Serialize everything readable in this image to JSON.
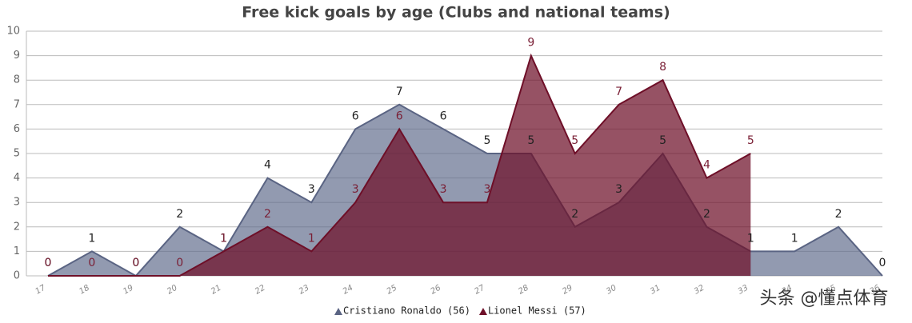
{
  "chart_data": {
    "type": "area",
    "title": "Free kick goals by age (Clubs and national teams)",
    "categories": [
      "17",
      "18",
      "19",
      "20",
      "21",
      "22",
      "23",
      "24",
      "25",
      "26",
      "27",
      "28",
      "29",
      "30",
      "31",
      "32",
      "33",
      "34",
      "35",
      "36"
    ],
    "series": [
      {
        "name": "Cristiano Ronaldo (56)",
        "color": "#5a6483",
        "label_color": "#222222",
        "values": [
          0,
          1,
          0,
          2,
          1,
          4,
          3,
          6,
          7,
          6,
          5,
          5,
          2,
          3,
          5,
          2,
          1,
          1,
          2,
          0
        ]
      },
      {
        "name": "Lionel Messi (57)",
        "color": "#6e0f28",
        "label_color": "#7a1f35",
        "values": [
          0,
          0,
          0,
          0,
          1,
          2,
          1,
          3,
          6,
          3,
          3,
          9,
          5,
          7,
          8,
          4,
          5,
          null,
          null,
          null
        ]
      }
    ],
    "ylim": [
      0,
      10
    ],
    "yticks": [
      0,
      1,
      2,
      3,
      4,
      5,
      6,
      7,
      8,
      9,
      10
    ],
    "grid": true,
    "watermark": "头条 @懂点体育"
  }
}
